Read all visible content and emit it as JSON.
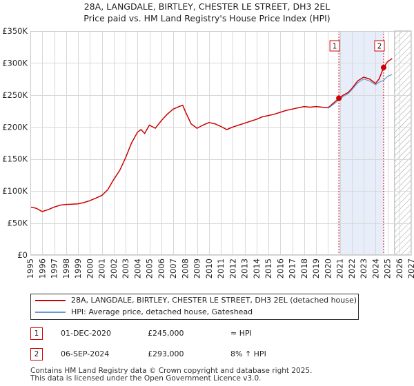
{
  "title_line1": "28A, LANGDALE, BIRTLEY, CHESTER LE STREET, DH3 2EL",
  "title_line2": "Price paid vs. HM Land Registry's House Price Index (HPI)",
  "colors": {
    "price_line": "#cc0000",
    "hpi_line": "#6699cc",
    "shade": "#e8eef9",
    "marker_border": "#cc0000",
    "hatch": "#999999"
  },
  "chart_data": {
    "type": "line",
    "ylim": [
      0,
      350000
    ],
    "xlim": [
      1995,
      2027
    ],
    "ytick_labels": [
      "£0",
      "£50K",
      "£100K",
      "£150K",
      "£200K",
      "£250K",
      "£300K",
      "£350K"
    ],
    "ytick_values": [
      0,
      50000,
      100000,
      150000,
      200000,
      250000,
      300000,
      350000
    ],
    "xtick_labels": [
      "1995",
      "1996",
      "1997",
      "1998",
      "1999",
      "2000",
      "2001",
      "2002",
      "2003",
      "2004",
      "2005",
      "2006",
      "2007",
      "2008",
      "2009",
      "2010",
      "2011",
      "2012",
      "2013",
      "2014",
      "2015",
      "2016",
      "2017",
      "2018",
      "2019",
      "2020",
      "2021",
      "2022",
      "2023",
      "2024",
      "2025",
      "2026",
      "2027"
    ],
    "grid": true,
    "shaded_region": [
      2020.92,
      2024.68
    ],
    "future_hatch_from": 2025.6,
    "series": [
      {
        "name": "28A, LANGDALE, BIRTLEY, CHESTER LE STREET, DH3 2EL (detached house)",
        "x": [
          1995.0,
          1995.5,
          1996.0,
          1996.5,
          1997.0,
          1997.5,
          1998.0,
          1998.5,
          1999.0,
          1999.5,
          2000.0,
          2000.5,
          2001.0,
          2001.5,
          2002.0,
          2002.5,
          2003.0,
          2003.5,
          2004.0,
          2004.3,
          2004.6,
          2005.0,
          2005.5,
          2006.0,
          2006.5,
          2007.0,
          2007.5,
          2007.8,
          2008.0,
          2008.5,
          2009.0,
          2009.5,
          2010.0,
          2010.5,
          2011.0,
          2011.5,
          2012.0,
          2012.5,
          2013.0,
          2013.5,
          2014.0,
          2014.5,
          2015.0,
          2015.5,
          2016.0,
          2016.5,
          2017.0,
          2017.5,
          2018.0,
          2018.5,
          2019.0,
          2019.5,
          2020.0,
          2020.5,
          2020.92,
          2021.3,
          2021.7,
          2022.0,
          2022.5,
          2023.0,
          2023.5,
          2024.0,
          2024.3,
          2024.68,
          2025.0,
          2025.4
        ],
        "values": [
          75000,
          73000,
          68000,
          71000,
          75000,
          78000,
          79000,
          79500,
          80000,
          82000,
          85000,
          89000,
          93000,
          102000,
          118000,
          132000,
          152000,
          175000,
          192000,
          196000,
          190000,
          203000,
          198000,
          210000,
          220000,
          228000,
          232000,
          234000,
          225000,
          205000,
          198000,
          203000,
          207000,
          205000,
          201000,
          196000,
          200000,
          203000,
          206000,
          209000,
          212000,
          216000,
          218000,
          220000,
          223000,
          226000,
          228000,
          230000,
          232000,
          231000,
          232000,
          231000,
          230000,
          238000,
          245000,
          250000,
          254000,
          260000,
          272000,
          278000,
          275000,
          268000,
          275000,
          293000,
          302000,
          307000
        ],
        "color": "#cc0000"
      },
      {
        "name": "HPI: Average price, detached house, Gateshead",
        "x": [
          2020.0,
          2020.5,
          2020.92,
          2021.3,
          2021.7,
          2022.0,
          2022.5,
          2023.0,
          2023.5,
          2024.0,
          2024.3,
          2024.68,
          2025.0,
          2025.4
        ],
        "values": [
          229000,
          236000,
          242000,
          248000,
          252000,
          258000,
          269000,
          275000,
          272000,
          266000,
          270000,
          273000,
          279000,
          282000
        ],
        "color": "#6699cc"
      }
    ],
    "annotations": [
      {
        "label": "1",
        "x": 2020.92,
        "value": 245000
      },
      {
        "label": "2",
        "x": 2024.68,
        "value": 293000
      }
    ]
  },
  "legend": {
    "items": [
      "28A, LANGDALE, BIRTLEY, CHESTER LE STREET, DH3 2EL (detached house)",
      "HPI: Average price, detached house, Gateshead"
    ]
  },
  "transactions": [
    {
      "num": "1",
      "date": "01-DEC-2020",
      "price": "£245,000",
      "hpi": "≈ HPI"
    },
    {
      "num": "2",
      "date": "06-SEP-2024",
      "price": "£293,000",
      "hpi": "8% ↑ HPI"
    }
  ],
  "footer": {
    "line1": "Contains HM Land Registry data © Crown copyright and database right 2025.",
    "line2": "This data is licensed under the Open Government Licence v3.0."
  }
}
